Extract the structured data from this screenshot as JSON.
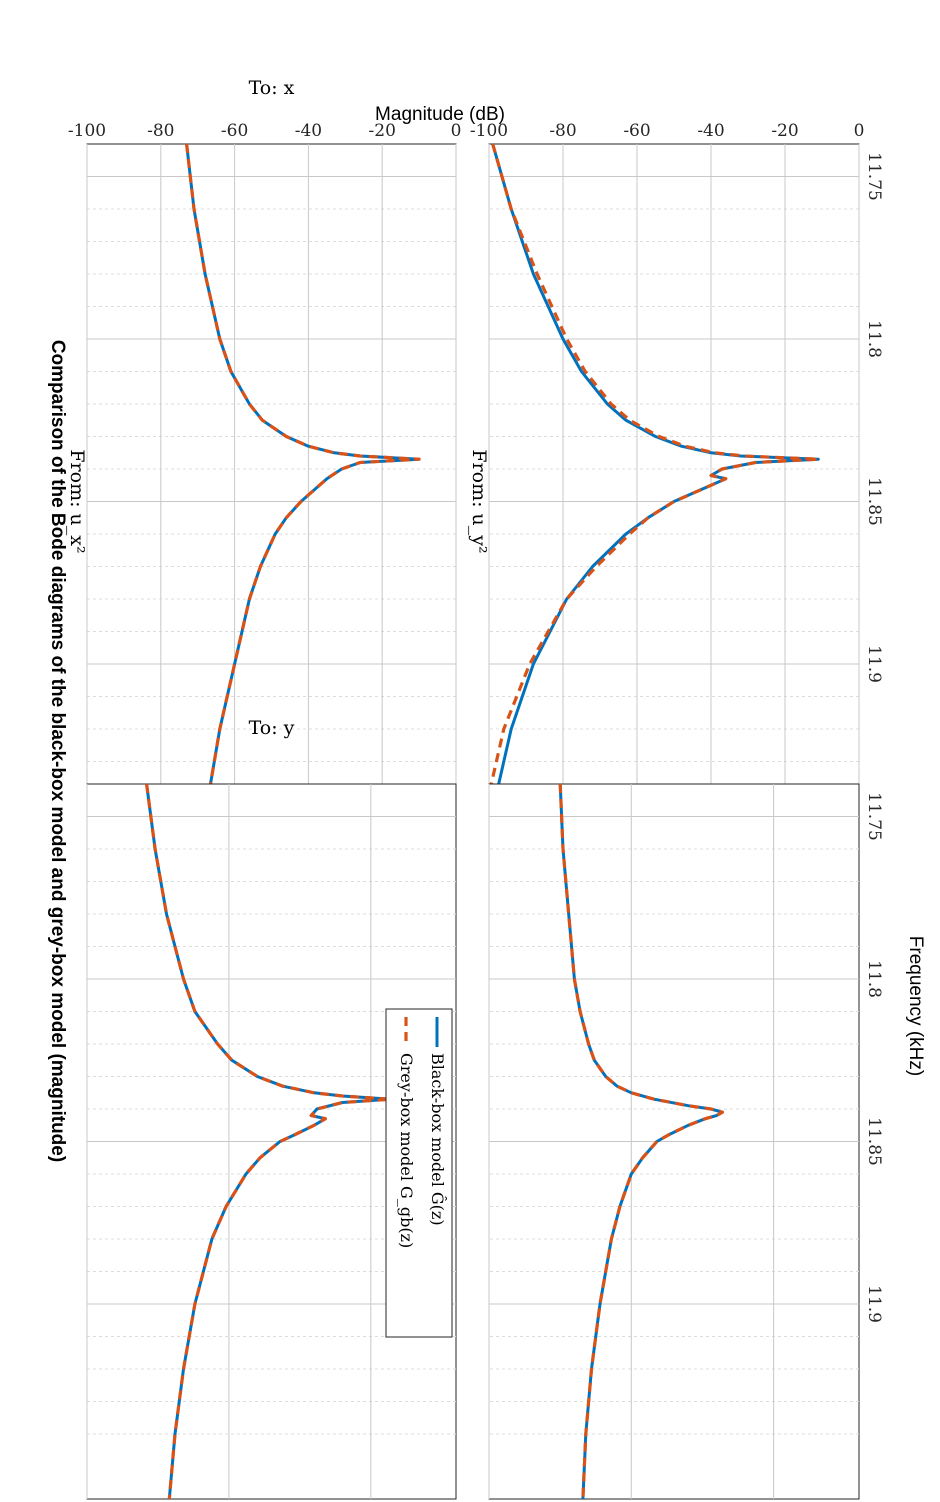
{
  "figure": {
    "title": "Comparison of the Bode diagrams of the black-box model and grey-box model (magnitude)",
    "xlabel": "Frequency  (kHz)",
    "ylabel": "Magnitude (dB)"
  },
  "colors": {
    "black_box": "#0072BD",
    "grey_box": "#D95319"
  },
  "legend": {
    "placement": "top-right",
    "entries": [
      {
        "label": "Black-box model Ĝ(z)",
        "style": "solid",
        "color": "#0072BD"
      },
      {
        "label": "Grey-box model G_gb(z)",
        "style": "dashed",
        "color": "#D95319"
      }
    ]
  },
  "chart_data": [
    {
      "type": "line",
      "input_label": "From:  u_x²",
      "output_label": "To:  x",
      "xscale": "linear",
      "xlim": [
        11.74,
        11.96
      ],
      "ylim": [
        -100,
        0
      ],
      "xticks": [
        "11.75",
        "11.8",
        "11.85",
        "11.9"
      ],
      "yticks": [
        "0",
        "-20",
        "-40",
        "-60",
        "-80",
        "-100"
      ],
      "grid": true,
      "x": [
        11.74,
        11.76,
        11.78,
        11.8,
        11.81,
        11.82,
        11.825,
        11.83,
        11.833,
        11.835,
        11.836,
        11.837,
        11.838,
        11.84,
        11.843,
        11.847,
        11.85,
        11.855,
        11.86,
        11.87,
        11.88,
        11.9,
        11.92,
        11.94,
        11.96
      ],
      "series": [
        {
          "name": "Black-box model Ĝ(z)",
          "style": "solid",
          "values": [
            -73,
            -71,
            -68,
            -64,
            -61,
            -56,
            -52.5,
            -46,
            -40,
            -33,
            -26,
            -10,
            -26,
            -31,
            -35,
            -39,
            -42,
            -46,
            -49,
            -53,
            -56,
            -60,
            -64,
            -67,
            -69
          ]
        },
        {
          "name": "Grey-box model G_gb(z)",
          "style": "dashed",
          "values": [
            -73,
            -71,
            -68,
            -64,
            -61,
            -56,
            -52.5,
            -46,
            -40,
            -33,
            -26,
            -10,
            -26,
            -31,
            -35,
            -39,
            -42,
            -46,
            -49,
            -53,
            -56,
            -60,
            -64,
            -67,
            -69
          ]
        }
      ]
    },
    {
      "type": "line",
      "input_label": "From:  u_y²",
      "output_label": "To:  x",
      "xscale": "linear",
      "xlim": [
        11.74,
        11.96
      ],
      "ylim": [
        -100,
        0
      ],
      "xticks": [
        "11.75",
        "11.8",
        "11.85",
        "11.9"
      ],
      "yticks": [
        "0",
        "-20",
        "-40",
        "-60",
        "-80",
        "-100"
      ],
      "grid": true,
      "x": [
        11.74,
        11.76,
        11.78,
        11.8,
        11.81,
        11.82,
        11.825,
        11.83,
        11.833,
        11.835,
        11.836,
        11.837,
        11.838,
        11.84,
        11.842,
        11.843,
        11.845,
        11.848,
        11.85,
        11.855,
        11.86,
        11.87,
        11.88,
        11.9,
        11.92,
        11.94,
        11.96
      ],
      "series": [
        {
          "name": "Black-box model Ĝ(z)",
          "style": "solid",
          "values": [
            -99,
            -94,
            -88,
            -80,
            -75,
            -68,
            -63,
            -55,
            -48,
            -40,
            -32,
            -11,
            -28,
            -37,
            -40,
            -36,
            -40,
            -46,
            -50,
            -57,
            -63,
            -72,
            -79,
            -88,
            -94,
            -98,
            -100
          ]
        },
        {
          "name": "Grey-box model G_gb(z)",
          "style": "dashed",
          "values": [
            -99,
            -94,
            -87,
            -79,
            -74,
            -67,
            -62,
            -54,
            -47,
            -39,
            -31,
            -11,
            -28,
            -37,
            -40,
            -36,
            -40,
            -46,
            -50,
            -57,
            -62,
            -71,
            -79,
            -89,
            -96,
            -100,
            -101
          ]
        }
      ]
    },
    {
      "type": "line",
      "input_label": "From:  u_x²",
      "output_label": "To:  y",
      "xscale": "linear",
      "xlim": [
        11.74,
        11.96
      ],
      "ylim": [
        -100,
        30
      ],
      "xticks": [
        "11.75",
        "11.8",
        "11.85",
        "11.9"
      ],
      "yticks": [
        "0",
        "-50",
        "-100"
      ],
      "grid": true,
      "x": [
        11.74,
        11.76,
        11.78,
        11.8,
        11.81,
        11.82,
        11.825,
        11.83,
        11.833,
        11.835,
        11.836,
        11.837,
        11.838,
        11.84,
        11.842,
        11.843,
        11.845,
        11.848,
        11.85,
        11.855,
        11.86,
        11.87,
        11.88,
        11.9,
        11.92,
        11.94,
        11.96
      ],
      "series": [
        {
          "name": "Black-box model Ĝ(z)",
          "style": "solid",
          "values": [
            -79,
            -76,
            -72,
            -66,
            -62,
            -54,
            -49,
            -40,
            -31,
            -20,
            -10,
            7,
            -10,
            -19,
            -21,
            -16,
            -20,
            -27,
            -32,
            -39,
            -44,
            -51,
            -56,
            -62,
            -66,
            -69,
            -71
          ]
        },
        {
          "name": "Grey-box model G_gb(z)",
          "style": "dashed",
          "values": [
            -79,
            -76,
            -72,
            -66,
            -62,
            -54,
            -49,
            -40,
            -31,
            -20,
            -10,
            7,
            -10,
            -19,
            -21,
            -16,
            -20,
            -27,
            -32,
            -39,
            -44,
            -51,
            -56,
            -62,
            -66,
            -69,
            -71
          ]
        }
      ]
    },
    {
      "type": "line",
      "input_label": "From:  u_y²",
      "output_label": "To:  y",
      "xscale": "linear",
      "xlim": [
        11.74,
        11.96
      ],
      "ylim": [
        -100,
        30
      ],
      "xticks": [
        "11.75",
        "11.8",
        "11.85",
        "11.9"
      ],
      "yticks": [
        "0",
        "-50",
        "-100"
      ],
      "grid": true,
      "x": [
        11.74,
        11.76,
        11.78,
        11.8,
        11.81,
        11.82,
        11.825,
        11.83,
        11.833,
        11.835,
        11.837,
        11.839,
        11.84,
        11.841,
        11.842,
        11.843,
        11.845,
        11.848,
        11.85,
        11.855,
        11.86,
        11.87,
        11.88,
        11.9,
        11.92,
        11.94,
        11.96
      ],
      "series": [
        {
          "name": "Black-box model Ĝ(z)",
          "style": "solid",
          "values": [
            -75,
            -74,
            -72,
            -70,
            -68,
            -65,
            -63,
            -59,
            -55,
            -50,
            -42,
            -30,
            -22,
            -18,
            -20,
            -24,
            -30,
            -37,
            -41,
            -46,
            -50,
            -54,
            -57,
            -61,
            -64,
            -66,
            -67
          ]
        },
        {
          "name": "Grey-box model G_gb(z)",
          "style": "dashed",
          "values": [
            -75,
            -74,
            -72,
            -70,
            -68,
            -65,
            -63,
            -59,
            -55,
            -50,
            -42,
            -30,
            -22,
            -18,
            -20,
            -24,
            -30,
            -37,
            -41,
            -46,
            -50,
            -54,
            -57,
            -61,
            -64,
            -66,
            -67
          ]
        }
      ]
    }
  ]
}
